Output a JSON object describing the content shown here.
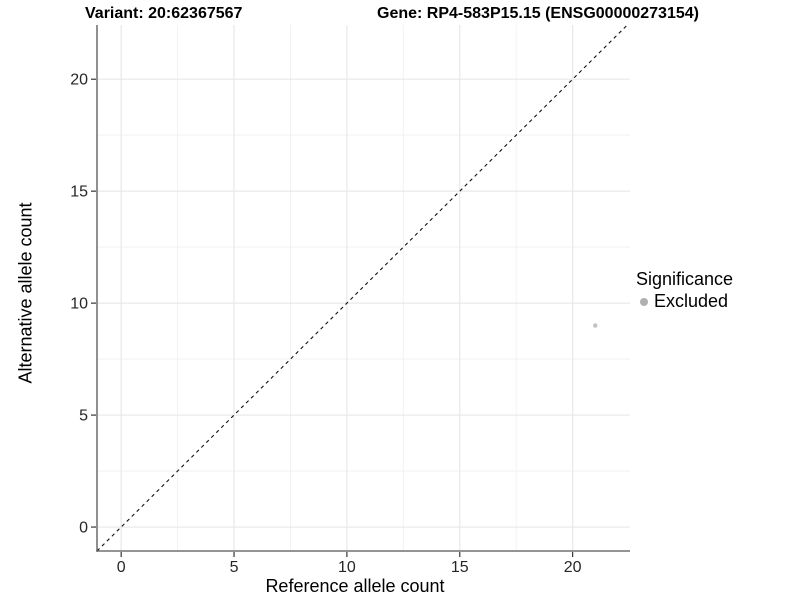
{
  "chart_data": {
    "type": "scatter",
    "titles": {
      "variant": "Variant: 20:62367567",
      "gene": "Gene: RP4-583P15.15 (ENSG00000273154)"
    },
    "xlabel": "Reference allele count",
    "ylabel": "Alternative allele count",
    "xlim": [
      -1.07,
      22.54
    ],
    "ylim": [
      -1.07,
      22.42
    ],
    "x_ticks": [
      0,
      5,
      10,
      15,
      20
    ],
    "y_ticks": [
      0,
      5,
      10,
      15,
      20
    ],
    "minor_gridlines_x": [
      2.5,
      7.5,
      12.5,
      17.5
    ],
    "minor_gridlines_y": [
      2.5,
      7.5,
      12.5,
      17.5
    ],
    "grid_major_color": "#e8e8e8",
    "grid_minor_color": "#f2f2f2",
    "axis_line_color": "#555555",
    "tick_color": "#222222",
    "identity_line": {
      "slope": 1,
      "intercept": 0,
      "linetype": "dashed",
      "color": "#111111"
    },
    "series": [
      {
        "name": "Excluded",
        "color": "#c2c2c2",
        "points": [
          {
            "x": 21,
            "y": 9
          }
        ]
      }
    ],
    "legend": {
      "title": "Significance",
      "position": "right",
      "items": [
        {
          "label": "Excluded",
          "color": "#b0b0b0"
        }
      ]
    }
  }
}
